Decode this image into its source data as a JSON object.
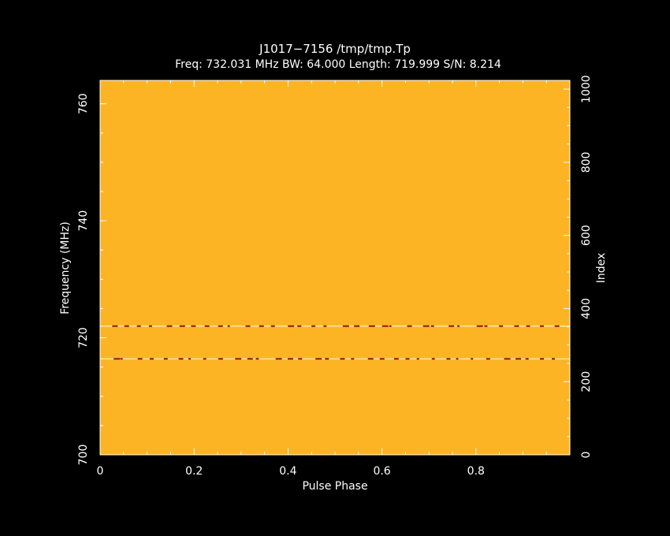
{
  "chart_data": {
    "type": "heatmap",
    "title": "J1017−7156 /tmp/tmp.Tp",
    "subtitle": "Freq: 732.031 MHz BW: 64.000 Length: 719.999 S/N: 8.214",
    "xlabel": "Pulse Phase",
    "ylabel": "Frequency (MHz)",
    "y2label": "Index",
    "xlim": [
      0,
      1
    ],
    "ylim": [
      700,
      764
    ],
    "y2lim": [
      0,
      1024
    ],
    "x_ticks": [
      {
        "value": 0,
        "label": "0"
      },
      {
        "value": 0.2,
        "label": "0.2"
      },
      {
        "value": 0.4,
        "label": "0.4"
      },
      {
        "value": 0.6,
        "label": "0.6"
      },
      {
        "value": 0.8,
        "label": "0.8"
      }
    ],
    "y_ticks": [
      {
        "value": 700,
        "label": "700"
      },
      {
        "value": 720,
        "label": "720"
      },
      {
        "value": 740,
        "label": "740"
      },
      {
        "value": 760,
        "label": "760"
      }
    ],
    "y2_ticks": [
      {
        "value": 0,
        "label": "0"
      },
      {
        "value": 200,
        "label": "200"
      },
      {
        "value": 400,
        "label": "400"
      },
      {
        "value": 600,
        "label": "600"
      },
      {
        "value": 800,
        "label": "800"
      },
      {
        "value": 1000,
        "label": "1000"
      }
    ],
    "background_color": "#fcb424",
    "rfi_channels_mhz": [
      716.4,
      722.0
    ],
    "colors": {
      "figure_bg": "#000000",
      "axes": "#ffffff",
      "text": "#ffffff",
      "line_bright": "#ffe79a",
      "line_dark": "#8a1a10"
    }
  }
}
